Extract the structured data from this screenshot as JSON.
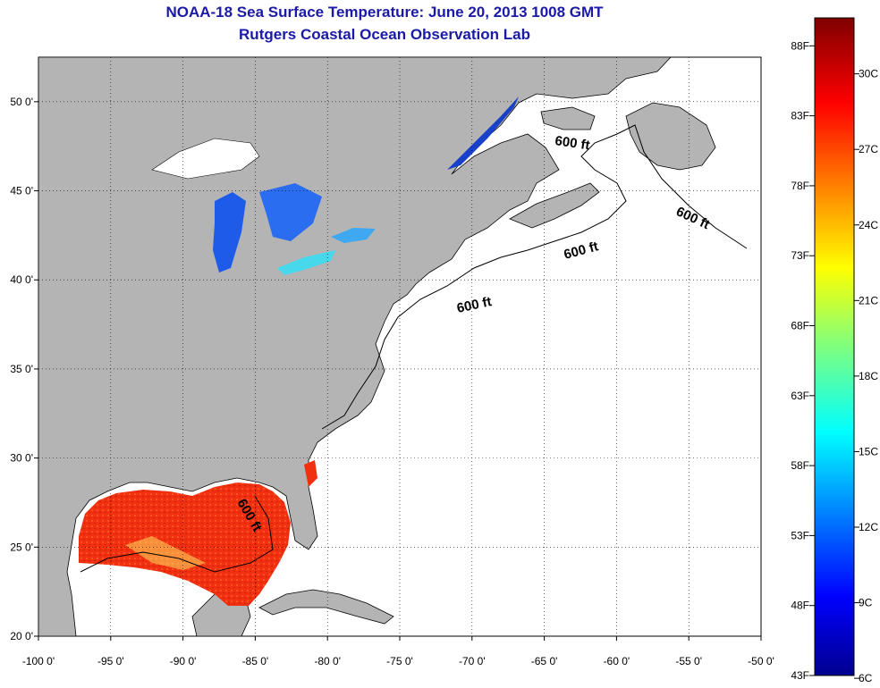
{
  "title": {
    "line1": "NOAA-18 Sea Surface Temperature:  June 20, 2013 1008 GMT",
    "line2": "Rutgers Coastal Ocean Observation Lab"
  },
  "map": {
    "lon_range": [
      -100,
      -50
    ],
    "lat_range": [
      20,
      52.5
    ],
    "lon_ticks": [
      "-100 0'",
      "-95 0'",
      "-90 0'",
      "-85 0'",
      "-80 0'",
      "-75 0'",
      "-70 0'",
      "-65 0'",
      "-60 0'",
      "-55 0'",
      "-50 0'"
    ],
    "lat_ticks": [
      "50 0'",
      "45 0'",
      "40 0'",
      "35 0'",
      "30 0'",
      "25 0'",
      "20 0'"
    ],
    "contour_label": "600 ft",
    "land_color": "#b4b4b4",
    "ocean_color": "#ffffff",
    "grid": "dotted"
  },
  "colorbar": {
    "f_labels": [
      "88F",
      "83F",
      "78F",
      "73F",
      "68F",
      "63F",
      "58F",
      "53F",
      "48F",
      "43F"
    ],
    "c_labels": [
      "30C",
      "27C",
      "24C",
      "21C",
      "18C",
      "15C",
      "12C",
      "9C",
      "6C"
    ],
    "range_f": [
      43,
      90
    ],
    "range_c": [
      6,
      32
    ],
    "colormap": "jet"
  }
}
